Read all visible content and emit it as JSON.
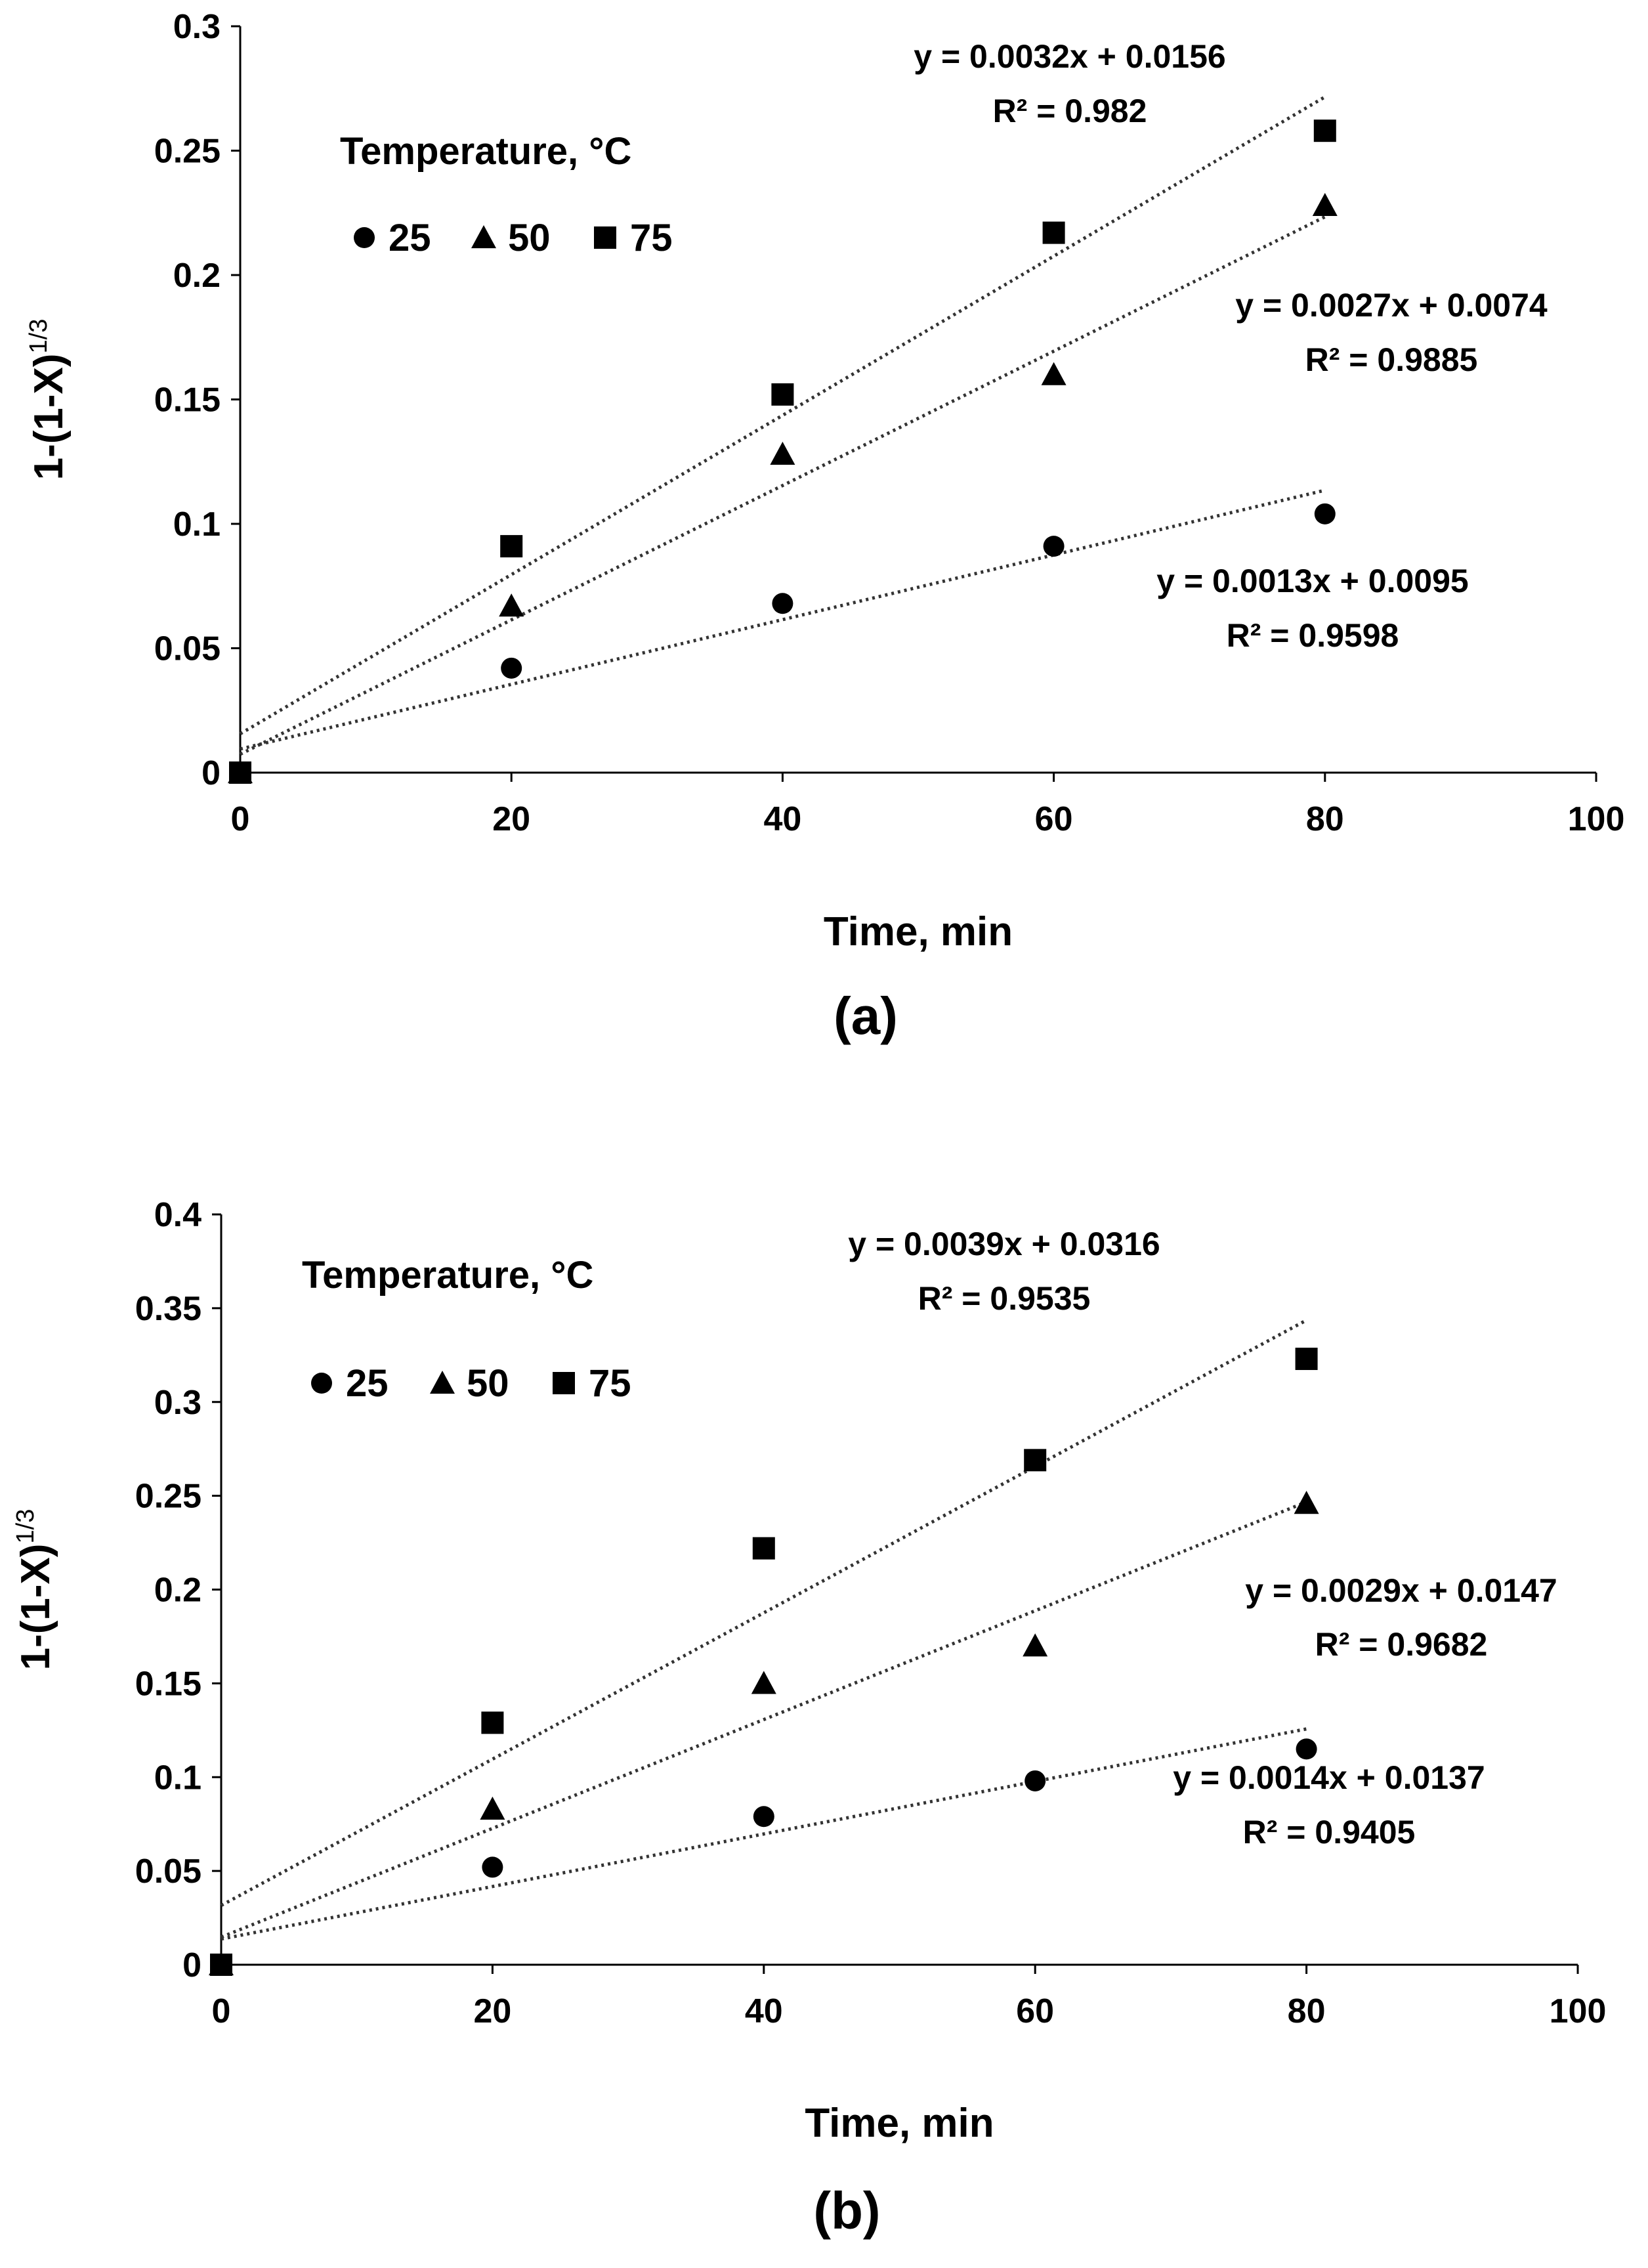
{
  "chart_data": [
    {
      "type": "scatter",
      "panel_label": "(a)",
      "xlabel": "Time, min",
      "ylabel": "1-(1-X)",
      "ylabel_sup": "1/3",
      "xlim": [
        0,
        100
      ],
      "ylim": [
        0,
        0.3
      ],
      "xticks": [
        "0",
        "20",
        "40",
        "60",
        "80",
        "100"
      ],
      "yticks": [
        "0",
        "0.05",
        "0.1",
        "0.15",
        "0.2",
        "0.25",
        "0.3"
      ],
      "legend_title": "Temperature, °C",
      "legend_placement": "top-left",
      "series": [
        {
          "name": "25",
          "marker": "circle",
          "x": [
            0,
            20,
            40,
            60,
            80
          ],
          "y": [
            0,
            0.042,
            0.068,
            0.091,
            0.104
          ],
          "trendline": {
            "slope": 0.0013,
            "intercept": 0.0095,
            "equation": "y = 0.0013x + 0.0095",
            "r2_label": "R² = 0.9598"
          }
        },
        {
          "name": "50",
          "marker": "triangle",
          "x": [
            0,
            20,
            40,
            60,
            80
          ],
          "y": [
            0,
            0.067,
            0.128,
            0.16,
            0.228
          ],
          "trendline": {
            "slope": 0.0027,
            "intercept": 0.0074,
            "equation": "y = 0.0027x + 0.0074",
            "r2_label": "R² = 0.9885"
          }
        },
        {
          "name": "75",
          "marker": "square",
          "x": [
            0,
            20,
            40,
            60,
            80
          ],
          "y": [
            0,
            0.091,
            0.152,
            0.217,
            0.258
          ],
          "trendline": {
            "slope": 0.0032,
            "intercept": 0.0156,
            "equation": "y = 0.0032x + 0.0156",
            "r2_label": "R² = 0.982"
          }
        }
      ]
    },
    {
      "type": "scatter",
      "panel_label": "(b)",
      "xlabel": "Time, min",
      "ylabel": "1-(1-X)",
      "ylabel_sup": "1/3",
      "xlim": [
        0,
        100
      ],
      "ylim": [
        0,
        0.4
      ],
      "xticks": [
        "0",
        "20",
        "40",
        "60",
        "80",
        "100"
      ],
      "yticks": [
        "0",
        "0.05",
        "0.1",
        "0.15",
        "0.2",
        "0.25",
        "0.3",
        "0.35",
        "0.4"
      ],
      "legend_title": "Temperature, °C",
      "legend_placement": "top-left",
      "series": [
        {
          "name": "25",
          "marker": "circle",
          "x": [
            0,
            20,
            40,
            60,
            80
          ],
          "y": [
            0,
            0.052,
            0.079,
            0.098,
            0.115
          ],
          "trendline": {
            "slope": 0.0014,
            "intercept": 0.0137,
            "equation": "y = 0.0014x + 0.0137",
            "r2_label": "R² = 0.9405"
          }
        },
        {
          "name": "50",
          "marker": "triangle",
          "x": [
            0,
            20,
            40,
            60,
            80
          ],
          "y": [
            0,
            0.083,
            0.15,
            0.17,
            0.246
          ],
          "trendline": {
            "slope": 0.0029,
            "intercept": 0.0147,
            "equation": "y = 0.0029x + 0.0147",
            "r2_label": "R² = 0.9682"
          }
        },
        {
          "name": "75",
          "marker": "square",
          "x": [
            0,
            20,
            40,
            60,
            80
          ],
          "y": [
            0,
            0.129,
            0.222,
            0.269,
            0.323
          ],
          "trendline": {
            "slope": 0.0039,
            "intercept": 0.0316,
            "equation": "y = 0.0039x + 0.0316",
            "r2_label": "R² = 0.9535"
          }
        }
      ]
    }
  ]
}
